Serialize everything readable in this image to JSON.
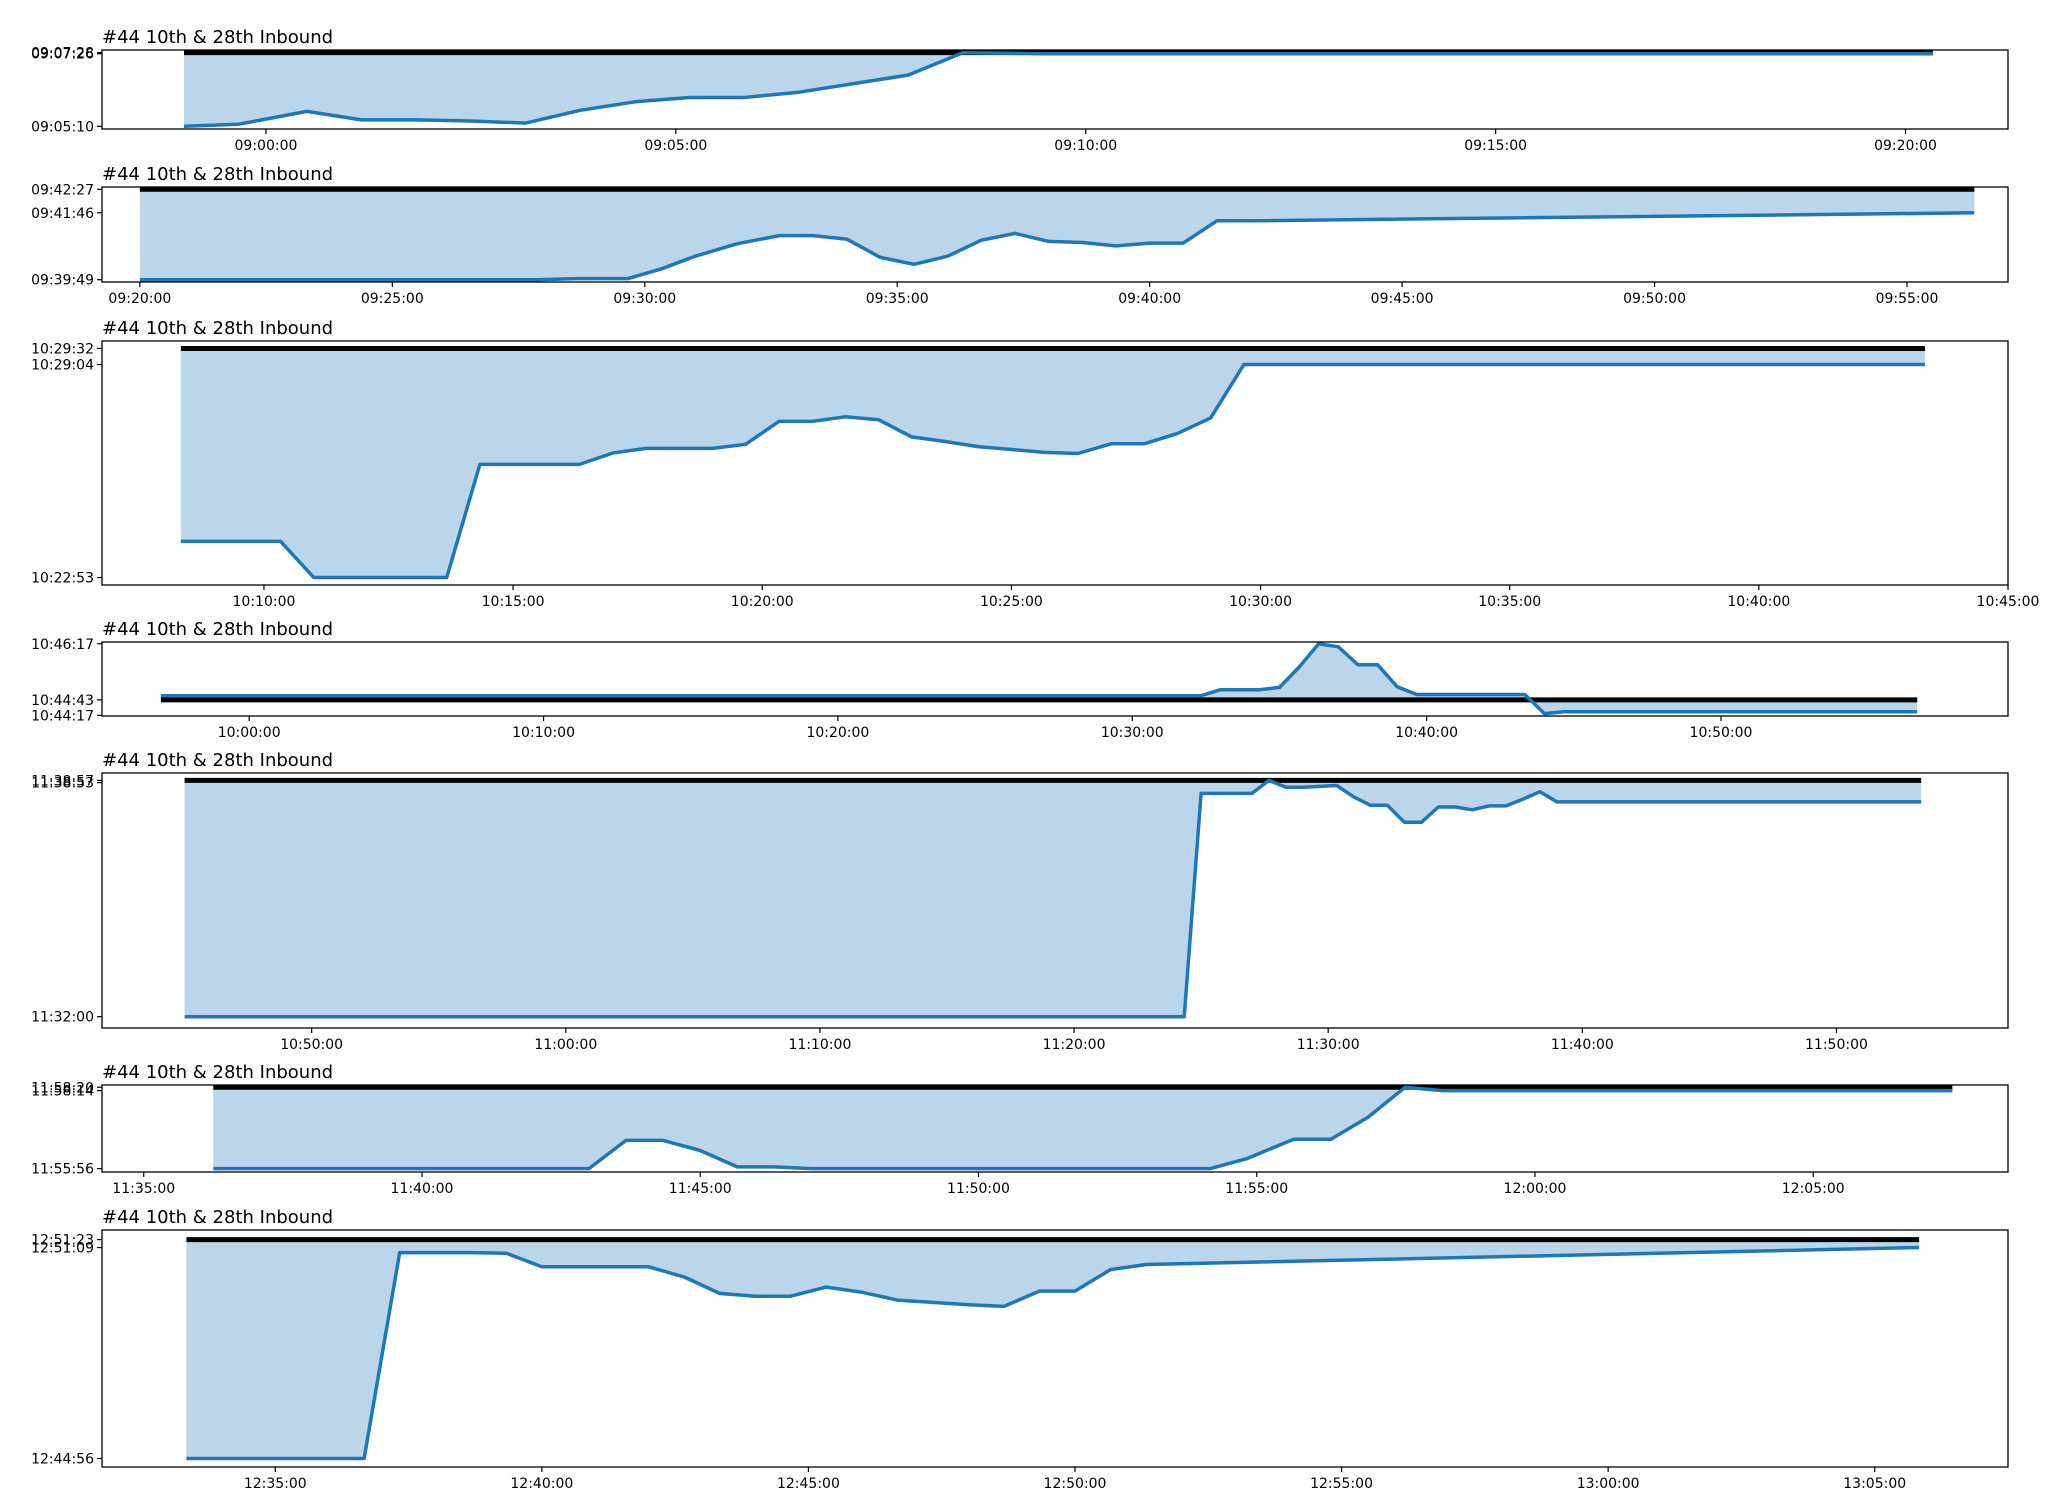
{
  "colors": {
    "line": "#1f77b4",
    "fill": "#bbd6ea",
    "reference": "#000000"
  },
  "chart_data": [
    {
      "type": "area",
      "title": "#44 10th & 28th Inbound",
      "reference_value": "09:07:28",
      "x_ticks": [
        "09:00:00",
        "09:05:00",
        "09:10:00",
        "09:15:00",
        "09:20:00"
      ],
      "x_range": [
        "08:58:00",
        "09:21:15"
      ],
      "y_ticks": [
        "09:05:10",
        "09:07:26",
        "09:07:28"
      ],
      "y_range": [
        "09:05:05",
        "09:07:33"
      ],
      "series": [
        {
          "x": [
            "08:59:00",
            "08:59:40",
            "09:00:30",
            "09:01:10",
            "09:01:50",
            "09:02:30",
            "09:03:10",
            "09:03:50",
            "09:04:30",
            "09:05:10",
            "09:05:50",
            "09:06:30",
            "09:07:10",
            "09:07:50",
            "09:08:30",
            "09:09:30",
            "09:20:20"
          ],
          "y": [
            "09:05:10",
            "09:05:14",
            "09:05:38",
            "09:05:22",
            "09:05:22",
            "09:05:20",
            "09:05:16",
            "09:05:40",
            "09:05:56",
            "09:06:04",
            "09:06:04",
            "09:06:14",
            "09:06:30",
            "09:06:46",
            "09:07:28",
            "09:07:26",
            "09:07:26"
          ]
        }
      ]
    },
    {
      "type": "area",
      "title": "#44 10th & 28th Inbound",
      "reference_value": "09:42:27",
      "x_ticks": [
        "09:20:00",
        "09:25:00",
        "09:30:00",
        "09:35:00",
        "09:40:00",
        "09:45:00",
        "09:50:00",
        "09:55:00"
      ],
      "x_range": [
        "09:19:15",
        "09:57:00"
      ],
      "y_ticks": [
        "09:39:49",
        "09:41:46",
        "09:42:27"
      ],
      "y_range": [
        "09:39:45",
        "09:42:31"
      ],
      "series": [
        {
          "x": [
            "09:20:00",
            "09:27:50",
            "09:28:40",
            "09:29:40",
            "09:30:20",
            "09:31:00",
            "09:31:50",
            "09:32:40",
            "09:33:20",
            "09:34:00",
            "09:34:40",
            "09:35:20",
            "09:36:00",
            "09:36:40",
            "09:37:20",
            "09:38:00",
            "09:38:40",
            "09:39:20",
            "09:40:00",
            "09:40:40",
            "09:41:20",
            "09:42:00",
            "09:56:20"
          ],
          "y": [
            "09:39:49",
            "09:39:49",
            "09:39:51",
            "09:39:51",
            "09:40:08",
            "09:40:30",
            "09:40:52",
            "09:41:06",
            "09:41:06",
            "09:41:00",
            "09:40:28",
            "09:40:16",
            "09:40:30",
            "09:40:58",
            "09:41:10",
            "09:40:56",
            "09:40:54",
            "09:40:48",
            "09:40:53",
            "09:40:53",
            "09:41:32",
            "09:41:32",
            "09:41:46"
          ]
        }
      ]
    },
    {
      "type": "area",
      "title": "#44 10th & 28th Inbound",
      "reference_value": "10:29:32",
      "x_ticks": [
        "10:10:00",
        "10:15:00",
        "10:20:00",
        "10:25:00",
        "10:30:00",
        "10:35:00",
        "10:40:00",
        "10:45:00"
      ],
      "x_range": [
        "10:06:45",
        "10:45:00"
      ],
      "y_ticks": [
        "10:22:53",
        "10:29:04",
        "10:29:32"
      ],
      "y_range": [
        "10:22:40",
        "10:29:45"
      ],
      "series": [
        {
          "x": [
            "10:08:20",
            "10:10:20",
            "10:11:00",
            "10:13:40",
            "10:14:20",
            "10:16:20",
            "10:17:00",
            "10:17:40",
            "10:19:00",
            "10:19:40",
            "10:20:20",
            "10:21:00",
            "10:21:40",
            "10:22:20",
            "10:23:00",
            "10:23:40",
            "10:24:20",
            "10:25:00",
            "10:25:40",
            "10:26:20",
            "10:27:00",
            "10:27:40",
            "10:28:20",
            "10:29:00",
            "10:29:40",
            "10:43:20"
          ],
          "y": [
            "10:23:56",
            "10:23:56",
            "10:22:53",
            "10:22:53",
            "10:26:10",
            "10:26:10",
            "10:26:30",
            "10:26:38",
            "10:26:38",
            "10:26:45",
            "10:27:25",
            "10:27:25",
            "10:27:33",
            "10:27:28",
            "10:26:58",
            "10:26:50",
            "10:26:41",
            "10:26:36",
            "10:26:31",
            "10:26:29",
            "10:26:46",
            "10:26:46",
            "10:27:04",
            "10:27:31",
            "10:29:04",
            "10:29:04"
          ]
        }
      ]
    },
    {
      "type": "area",
      "title": "#44 10th & 28th Inbound",
      "reference_value": "10:44:43",
      "x_ticks": [
        "10:00:00",
        "10:10:00",
        "10:20:00",
        "10:30:00",
        "10:40:00",
        "10:50:00"
      ],
      "x_range": [
        "09:55:00",
        "10:59:45"
      ],
      "y_ticks": [
        "10:44:17",
        "10:44:43",
        "10:46:17"
      ],
      "y_range": [
        "10:44:16",
        "10:46:20"
      ],
      "series": [
        {
          "x": [
            "09:57:00",
            "10:32:20",
            "10:33:00",
            "10:34:20",
            "10:35:00",
            "10:35:40",
            "10:36:20",
            "10:37:00",
            "10:37:40",
            "10:38:20",
            "10:39:00",
            "10:39:40",
            "10:43:20",
            "10:44:00",
            "10:44:40",
            "10:56:40"
          ],
          "y": [
            "10:44:50",
            "10:44:50",
            "10:45:00",
            "10:45:00",
            "10:45:04",
            "10:45:38",
            "10:46:17",
            "10:46:12",
            "10:45:42",
            "10:45:42",
            "10:45:05",
            "10:44:52",
            "10:44:52",
            "10:44:20",
            "10:44:23",
            "10:44:23"
          ]
        }
      ]
    },
    {
      "type": "area",
      "title": "#44 10th & 28th Inbound",
      "reference_value": "11:38:57",
      "x_ticks": [
        "10:50:00",
        "11:00:00",
        "11:10:00",
        "11:20:00",
        "11:30:00",
        "11:40:00",
        "11:50:00"
      ],
      "x_range": [
        "10:41:45",
        "11:56:45"
      ],
      "y_ticks": [
        "11:32:00",
        "11:38:53",
        "11:38:57"
      ],
      "y_range": [
        "11:31:40",
        "11:39:10"
      ],
      "series": [
        {
          "x": [
            "10:45:00",
            "11:24:20",
            "11:25:00",
            "11:27:00",
            "11:27:40",
            "11:28:20",
            "11:29:00",
            "11:30:20",
            "11:31:00",
            "11:31:40",
            "11:32:20",
            "11:33:00",
            "11:33:40",
            "11:34:20",
            "11:35:00",
            "11:35:40",
            "11:36:20",
            "11:37:00",
            "11:37:40",
            "11:38:20",
            "11:39:00",
            "11:53:20"
          ],
          "y": [
            "11:32:00",
            "11:32:00",
            "11:38:34",
            "11:38:34",
            "11:38:57",
            "11:38:45",
            "11:38:45",
            "11:38:48",
            "11:38:28",
            "11:38:13",
            "11:38:13",
            "11:37:43",
            "11:37:43",
            "11:38:10",
            "11:38:10",
            "11:38:05",
            "11:38:12",
            "11:38:12",
            "11:38:24",
            "11:38:37",
            "11:38:19",
            "11:38:19"
          ]
        }
      ]
    },
    {
      "type": "area",
      "title": "#44 10th & 28th Inbound",
      "reference_value": "11:58:20",
      "x_ticks": [
        "11:35:00",
        "11:40:00",
        "11:45:00",
        "11:50:00",
        "11:55:00",
        "12:00:00",
        "12:05:00"
      ],
      "x_range": [
        "11:34:15",
        "12:08:30"
      ],
      "y_ticks": [
        "11:55:56",
        "11:58:14",
        "11:58:20"
      ],
      "y_range": [
        "11:55:50",
        "11:58:24"
      ],
      "series": [
        {
          "x": [
            "11:36:15",
            "11:43:00",
            "11:43:40",
            "11:44:20",
            "11:45:00",
            "11:45:40",
            "11:46:20",
            "11:47:00",
            "11:54:10",
            "11:54:50",
            "11:55:40",
            "11:56:20",
            "11:57:00",
            "11:57:40",
            "11:58:20",
            "12:07:30"
          ],
          "y": [
            "11:55:56",
            "11:55:56",
            "11:56:46",
            "11:56:46",
            "11:56:28",
            "11:55:59",
            "11:55:59",
            "11:55:56",
            "11:55:56",
            "11:56:14",
            "11:56:48",
            "11:56:48",
            "11:57:27",
            "11:58:20",
            "11:58:14",
            "11:58:14"
          ]
        }
      ]
    },
    {
      "type": "area",
      "title": "#44 10th & 28th Inbound",
      "reference_value": "12:51:23",
      "x_ticks": [
        "12:35:00",
        "12:40:00",
        "12:45:00",
        "12:50:00",
        "12:55:00",
        "13:00:00",
        "13:05:00"
      ],
      "x_range": [
        "12:31:45",
        "13:07:30"
      ],
      "y_ticks": [
        "12:44:56",
        "12:51:09",
        "12:51:23"
      ],
      "y_range": [
        "12:44:41",
        "12:51:40"
      ],
      "series": [
        {
          "x": [
            "12:33:20",
            "12:36:40",
            "12:37:20",
            "12:38:40",
            "12:39:20",
            "12:40:00",
            "12:41:20",
            "12:42:00",
            "12:42:40",
            "12:43:20",
            "12:44:00",
            "12:44:40",
            "12:45:20",
            "12:46:00",
            "12:46:40",
            "12:47:20",
            "12:48:00",
            "12:48:40",
            "12:49:20",
            "12:50:00",
            "12:50:40",
            "12:51:20",
            "13:05:50"
          ],
          "y": [
            "12:44:56",
            "12:44:56",
            "12:51:00",
            "12:51:00",
            "12:50:59",
            "12:50:35",
            "12:50:35",
            "12:50:35",
            "12:50:17",
            "12:49:48",
            "12:49:43",
            "12:49:43",
            "12:49:59",
            "12:49:50",
            "12:49:36",
            "12:49:32",
            "12:49:28",
            "12:49:25",
            "12:49:52",
            "12:49:52",
            "12:50:30",
            "12:50:39",
            "12:51:09"
          ]
        }
      ]
    }
  ]
}
